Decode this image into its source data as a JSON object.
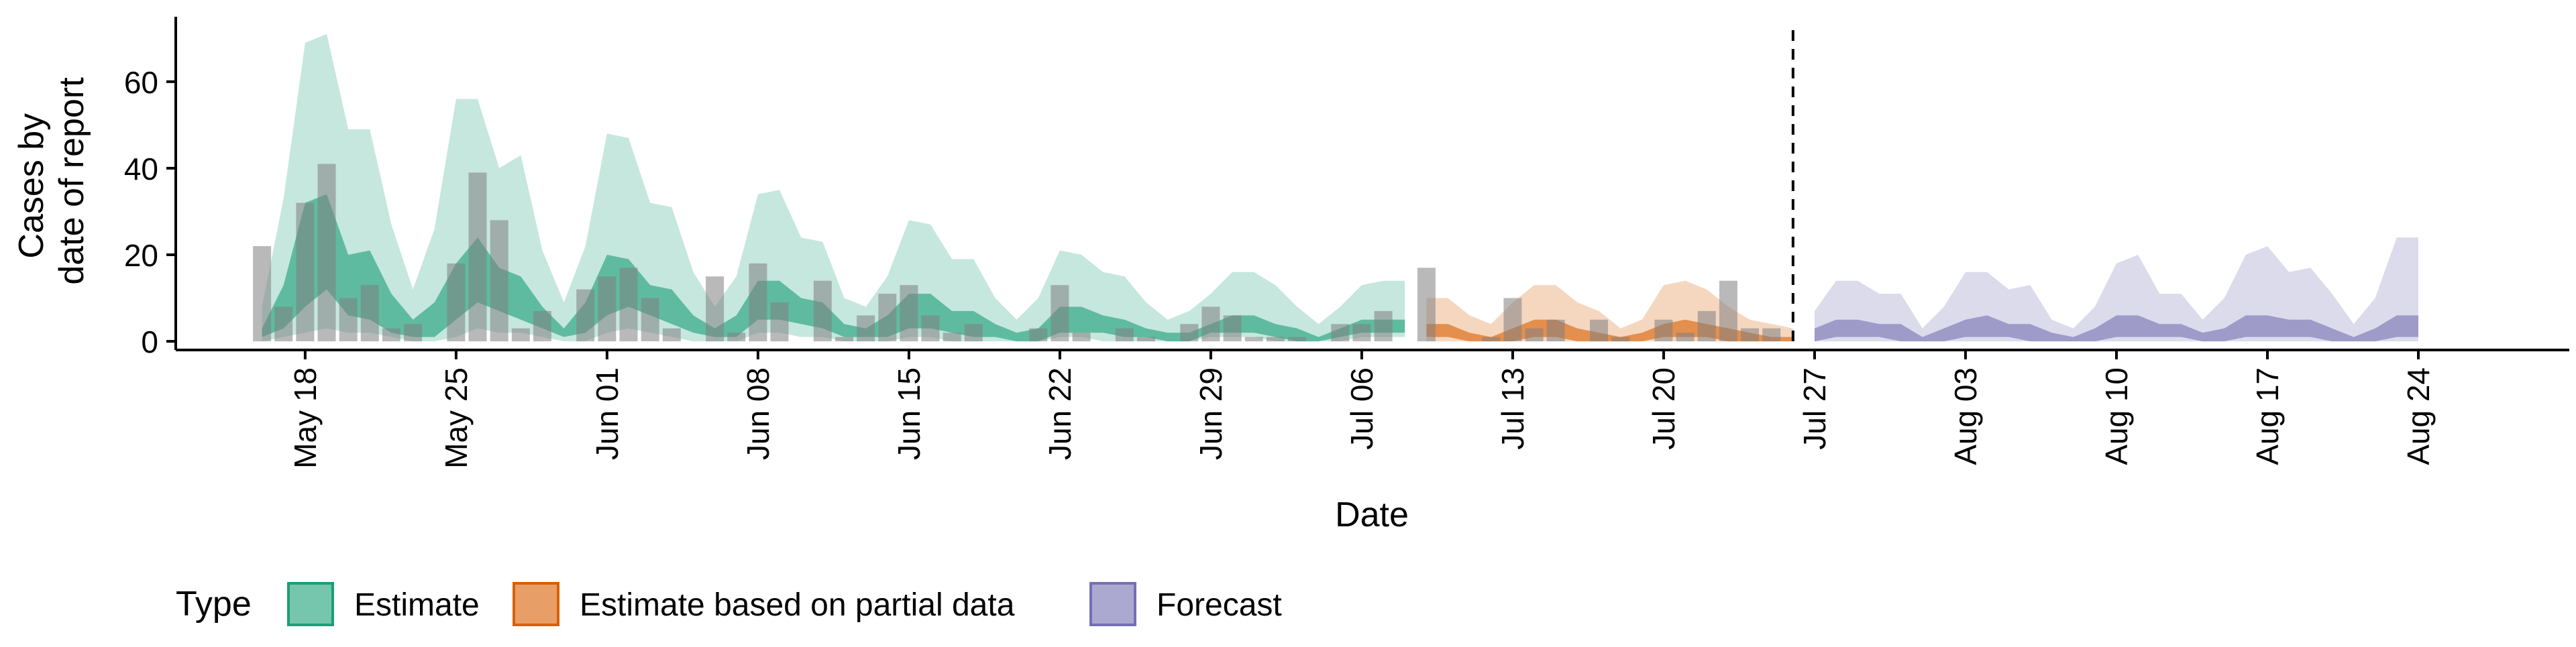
{
  "chart_data": {
    "type": "area",
    "xlabel": "Date",
    "ylabel_lines": [
      "Cases by",
      "date of report"
    ],
    "ylim": [
      -2,
      75
    ],
    "y_ticks": [
      0,
      20,
      40,
      60
    ],
    "x_start": "2020-05-12",
    "x_end": "2020-08-31",
    "x_ticks": [
      {
        "date": "2020-05-18",
        "label": "May 18"
      },
      {
        "date": "2020-05-25",
        "label": "May 25"
      },
      {
        "date": "2020-06-01",
        "label": "Jun 01"
      },
      {
        "date": "2020-06-08",
        "label": "Jun 08"
      },
      {
        "date": "2020-06-15",
        "label": "Jun 15"
      },
      {
        "date": "2020-06-22",
        "label": "Jun 22"
      },
      {
        "date": "2020-06-29",
        "label": "Jun 29"
      },
      {
        "date": "2020-07-06",
        "label": "Jul 06"
      },
      {
        "date": "2020-07-13",
        "label": "Jul 13"
      },
      {
        "date": "2020-07-20",
        "label": "Jul 20"
      },
      {
        "date": "2020-07-27",
        "label": "Jul 27"
      },
      {
        "date": "2020-08-03",
        "label": "Aug 03"
      },
      {
        "date": "2020-08-10",
        "label": "Aug 10"
      },
      {
        "date": "2020-08-17",
        "label": "Aug 17"
      },
      {
        "date": "2020-08-24",
        "label": "Aug 24"
      }
    ],
    "forecast_date": "2020-07-26",
    "colors": {
      "estimate": "#1B9E77",
      "partial": "#D95F02",
      "forecast": "#7570B3",
      "bars": "#808080",
      "axis": "#000000"
    },
    "reported_cases": {
      "name": "Cases by date of report",
      "x": [
        "2020-05-16",
        "2020-05-17",
        "2020-05-18",
        "2020-05-19",
        "2020-05-20",
        "2020-05-21",
        "2020-05-22",
        "2020-05-23",
        "2020-05-24",
        "2020-05-25",
        "2020-05-26",
        "2020-05-27",
        "2020-05-28",
        "2020-05-29",
        "2020-05-30",
        "2020-05-31",
        "2020-06-01",
        "2020-06-02",
        "2020-06-03",
        "2020-06-04",
        "2020-06-05",
        "2020-06-06",
        "2020-06-07",
        "2020-06-08",
        "2020-06-09",
        "2020-06-10",
        "2020-06-11",
        "2020-06-12",
        "2020-06-13",
        "2020-06-14",
        "2020-06-15",
        "2020-06-16",
        "2020-06-17",
        "2020-06-18",
        "2020-06-19",
        "2020-06-20",
        "2020-06-21",
        "2020-06-22",
        "2020-06-23",
        "2020-06-24",
        "2020-06-25",
        "2020-06-26",
        "2020-06-27",
        "2020-06-28",
        "2020-06-29",
        "2020-06-30",
        "2020-07-01",
        "2020-07-02",
        "2020-07-03",
        "2020-07-04",
        "2020-07-05",
        "2020-07-06",
        "2020-07-07",
        "2020-07-08",
        "2020-07-09",
        "2020-07-10",
        "2020-07-11",
        "2020-07-12",
        "2020-07-13",
        "2020-07-14",
        "2020-07-15",
        "2020-07-16",
        "2020-07-17",
        "2020-07-18",
        "2020-07-19",
        "2020-07-20",
        "2020-07-21",
        "2020-07-22",
        "2020-07-23",
        "2020-07-24",
        "2020-07-25"
      ],
      "values": [
        22,
        8,
        32,
        41,
        10,
        13,
        3,
        4,
        0,
        18,
        39,
        28,
        3,
        7,
        0,
        12,
        15,
        17,
        10,
        3,
        0,
        15,
        2,
        18,
        9,
        0,
        14,
        1,
        6,
        11,
        13,
        6,
        2,
        4,
        0,
        0,
        3,
        13,
        2,
        0,
        3,
        1,
        0,
        4,
        8,
        6,
        1,
        1,
        1,
        0,
        4,
        4,
        7,
        0,
        17,
        0,
        0,
        1,
        10,
        3,
        5,
        0,
        5,
        1,
        0,
        5,
        2,
        7,
        14,
        3,
        3
      ]
    },
    "series": [
      {
        "name": "Estimate",
        "color": "#1B9E77",
        "x": [
          "2020-05-16",
          "2020-05-17",
          "2020-05-18",
          "2020-05-19",
          "2020-05-20",
          "2020-05-21",
          "2020-05-22",
          "2020-05-23",
          "2020-05-24",
          "2020-05-25",
          "2020-05-26",
          "2020-05-27",
          "2020-05-28",
          "2020-05-29",
          "2020-05-30",
          "2020-05-31",
          "2020-06-01",
          "2020-06-02",
          "2020-06-03",
          "2020-06-04",
          "2020-06-05",
          "2020-06-06",
          "2020-06-07",
          "2020-06-08",
          "2020-06-09",
          "2020-06-10",
          "2020-06-11",
          "2020-06-12",
          "2020-06-13",
          "2020-06-14",
          "2020-06-15",
          "2020-06-16",
          "2020-06-17",
          "2020-06-18",
          "2020-06-19",
          "2020-06-20",
          "2020-06-21",
          "2020-06-22",
          "2020-06-23",
          "2020-06-24",
          "2020-06-25",
          "2020-06-26",
          "2020-06-27",
          "2020-06-28",
          "2020-06-29",
          "2020-06-30",
          "2020-07-01",
          "2020-07-02",
          "2020-07-03",
          "2020-07-04",
          "2020-07-05",
          "2020-07-06",
          "2020-07-07",
          "2020-07-08"
        ],
        "lower90": [
          0,
          1,
          2,
          3,
          2,
          2,
          1,
          0,
          0,
          1,
          3,
          2,
          2,
          1,
          0,
          0,
          2,
          3,
          2,
          1,
          0,
          0,
          0,
          2,
          2,
          1,
          1,
          0,
          0,
          0,
          1,
          1,
          0,
          0,
          0,
          0,
          0,
          1,
          1,
          0,
          0,
          0,
          0,
          0,
          1,
          1,
          1,
          0,
          0,
          0,
          0,
          1,
          1,
          1
        ],
        "upper90": [
          8,
          33,
          69,
          71,
          49,
          49,
          27,
          12,
          26,
          56,
          56,
          40,
          43,
          21,
          9,
          22,
          48,
          47,
          32,
          31,
          16,
          8,
          15,
          34,
          35,
          24,
          23,
          10,
          8,
          15,
          28,
          27,
          19,
          19,
          10,
          5,
          10,
          21,
          20,
          16,
          15,
          9,
          5,
          7,
          11,
          16,
          16,
          13,
          8,
          4,
          8,
          13,
          14,
          14
        ],
        "lower50": [
          1,
          3,
          8,
          12,
          6,
          5,
          2,
          1,
          1,
          5,
          9,
          7,
          5,
          3,
          1,
          2,
          6,
          8,
          6,
          4,
          2,
          1,
          1,
          5,
          5,
          4,
          3,
          1,
          1,
          1,
          3,
          3,
          2,
          1,
          1,
          0,
          0,
          2,
          2,
          2,
          1,
          1,
          0,
          0,
          2,
          2,
          2,
          1,
          0,
          0,
          1,
          2,
          2,
          2
        ],
        "upper50": [
          3,
          13,
          32,
          34,
          20,
          21,
          11,
          5,
          9,
          18,
          24,
          17,
          15,
          8,
          3,
          9,
          20,
          19,
          13,
          12,
          6,
          3,
          6,
          14,
          14,
          10,
          9,
          4,
          3,
          6,
          11,
          11,
          7,
          7,
          4,
          2,
          3,
          8,
          8,
          6,
          5,
          3,
          2,
          2,
          4,
          6,
          6,
          4,
          3,
          1,
          3,
          5,
          5,
          5
        ]
      },
      {
        "name": "Estimate based on partial data",
        "color": "#D95F02",
        "x": [
          "2020-07-09",
          "2020-07-10",
          "2020-07-11",
          "2020-07-12",
          "2020-07-13",
          "2020-07-14",
          "2020-07-15",
          "2020-07-16",
          "2020-07-17",
          "2020-07-18",
          "2020-07-19",
          "2020-07-20",
          "2020-07-21",
          "2020-07-22",
          "2020-07-23",
          "2020-07-24",
          "2020-07-25",
          "2020-07-26"
        ],
        "lower90": [
          0,
          0,
          0,
          0,
          0,
          0,
          0,
          0,
          0,
          0,
          0,
          0,
          0,
          0,
          0,
          0,
          0,
          0
        ],
        "upper90": [
          10,
          10,
          6,
          4,
          9,
          13,
          13,
          9,
          7,
          3,
          5,
          13,
          14,
          12,
          8,
          5,
          4,
          3
        ],
        "lower50": [
          1,
          1,
          0,
          0,
          0,
          1,
          1,
          0,
          0,
          0,
          0,
          1,
          1,
          1,
          0,
          0,
          0,
          0
        ],
        "upper50": [
          4,
          4,
          2,
          1,
          3,
          5,
          5,
          3,
          2,
          1,
          2,
          4,
          5,
          4,
          3,
          2,
          1,
          1
        ]
      },
      {
        "name": "Forecast",
        "color": "#7570B3",
        "x": [
          "2020-07-27",
          "2020-07-28",
          "2020-07-29",
          "2020-07-30",
          "2020-07-31",
          "2020-08-01",
          "2020-08-02",
          "2020-08-03",
          "2020-08-04",
          "2020-08-05",
          "2020-08-06",
          "2020-08-07",
          "2020-08-08",
          "2020-08-09",
          "2020-08-10",
          "2020-08-11",
          "2020-08-12",
          "2020-08-13",
          "2020-08-14",
          "2020-08-15",
          "2020-08-16",
          "2020-08-17",
          "2020-08-18",
          "2020-08-19",
          "2020-08-20",
          "2020-08-21",
          "2020-08-22",
          "2020-08-23",
          "2020-08-24"
        ],
        "lower90": [
          0,
          0,
          0,
          0,
          0,
          0,
          0,
          0,
          0,
          0,
          0,
          0,
          0,
          0,
          0,
          0,
          0,
          0,
          0,
          0,
          0,
          0,
          0,
          0,
          0,
          0,
          0,
          0,
          0
        ],
        "upper90": [
          7,
          14,
          14,
          11,
          11,
          3,
          8,
          16,
          16,
          12,
          13,
          5,
          3,
          8,
          18,
          20,
          11,
          11,
          5,
          10,
          20,
          22,
          16,
          17,
          11,
          4,
          10,
          24,
          24
        ],
        "lower50": [
          0,
          1,
          1,
          1,
          0,
          0,
          0,
          1,
          1,
          1,
          0,
          0,
          0,
          0,
          1,
          1,
          1,
          1,
          0,
          0,
          1,
          1,
          1,
          1,
          0,
          0,
          0,
          1,
          1
        ],
        "upper50": [
          3,
          5,
          5,
          4,
          4,
          1,
          3,
          5,
          6,
          4,
          4,
          2,
          1,
          3,
          6,
          6,
          4,
          4,
          2,
          3,
          6,
          6,
          5,
          5,
          3,
          1,
          3,
          6,
          6
        ]
      }
    ],
    "legend": {
      "position": "bottom-left",
      "title": "Type",
      "items": [
        {
          "label": "Estimate",
          "color": "#1B9E77"
        },
        {
          "label": "Estimate based on partial data",
          "color": "#D95F02"
        },
        {
          "label": "Forecast",
          "color": "#7570B3"
        }
      ]
    },
    "grid": false
  }
}
